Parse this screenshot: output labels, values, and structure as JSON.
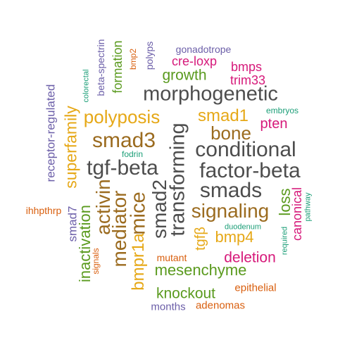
{
  "colors": {
    "dark_gray": "#4d4d4d",
    "gold": "#e6a817",
    "brown": "#9b6b1f",
    "green": "#5a9a1e",
    "purple": "#6b5ea8",
    "magenta": "#d6197a",
    "orange": "#d95f0e",
    "teal": "#1b9e77"
  },
  "words": [
    {
      "text": "gonadotrope",
      "color": "purple"
    },
    {
      "text": "cre-loxp",
      "color": "magenta"
    },
    {
      "text": "bmps",
      "color": "magenta"
    },
    {
      "text": "trim33",
      "color": "magenta"
    },
    {
      "text": "growth",
      "color": "green"
    },
    {
      "text": "morphogenetic",
      "color": "dark_gray"
    },
    {
      "text": "embryos",
      "color": "teal"
    },
    {
      "text": "polyposis",
      "color": "gold"
    },
    {
      "text": "smad1",
      "color": "gold"
    },
    {
      "text": "pten",
      "color": "magenta"
    },
    {
      "text": "bone",
      "color": "brown"
    },
    {
      "text": "smad3",
      "color": "brown"
    },
    {
      "text": "conditional",
      "color": "dark_gray"
    },
    {
      "text": "fodrin",
      "color": "teal"
    },
    {
      "text": "tgf-beta",
      "color": "dark_gray"
    },
    {
      "text": "factor-beta",
      "color": "dark_gray"
    },
    {
      "text": "smads",
      "color": "dark_gray"
    },
    {
      "text": "signaling",
      "color": "brown"
    },
    {
      "text": "ihhpthrp",
      "color": "orange"
    },
    {
      "text": "duodenum",
      "color": "teal"
    },
    {
      "text": "bmp4",
      "color": "gold"
    },
    {
      "text": "deletion",
      "color": "magenta"
    },
    {
      "text": "mutant",
      "color": "orange"
    },
    {
      "text": "mesenchyme",
      "color": "green"
    },
    {
      "text": "knockout",
      "color": "green"
    },
    {
      "text": "epithelial",
      "color": "orange"
    },
    {
      "text": "months",
      "color": "purple"
    },
    {
      "text": "adenomas",
      "color": "orange"
    },
    {
      "text": "receptor-regulated",
      "color": "purple"
    },
    {
      "text": "superfamily",
      "color": "gold"
    },
    {
      "text": "colorectal",
      "color": "teal"
    },
    {
      "text": "beta-spectrin",
      "color": "purple"
    },
    {
      "text": "formation",
      "color": "green"
    },
    {
      "text": "bmp2",
      "color": "orange"
    },
    {
      "text": "polyps",
      "color": "purple"
    },
    {
      "text": "smad7",
      "color": "purple"
    },
    {
      "text": "inactivation",
      "color": "green"
    },
    {
      "text": "signals",
      "color": "orange"
    },
    {
      "text": "activin",
      "color": "brown"
    },
    {
      "text": "mediator",
      "color": "brown"
    },
    {
      "text": "bmpr1a",
      "color": "gold"
    },
    {
      "text": "mice",
      "color": "brown"
    },
    {
      "text": "smad2",
      "color": "dark_gray"
    },
    {
      "text": "transforming",
      "color": "dark_gray"
    },
    {
      "text": "tgfβ",
      "color": "gold"
    },
    {
      "text": "loss",
      "color": "green"
    },
    {
      "text": "required",
      "color": "teal"
    },
    {
      "text": "canonical",
      "color": "magenta"
    },
    {
      "text": "pathway",
      "color": "teal"
    }
  ]
}
